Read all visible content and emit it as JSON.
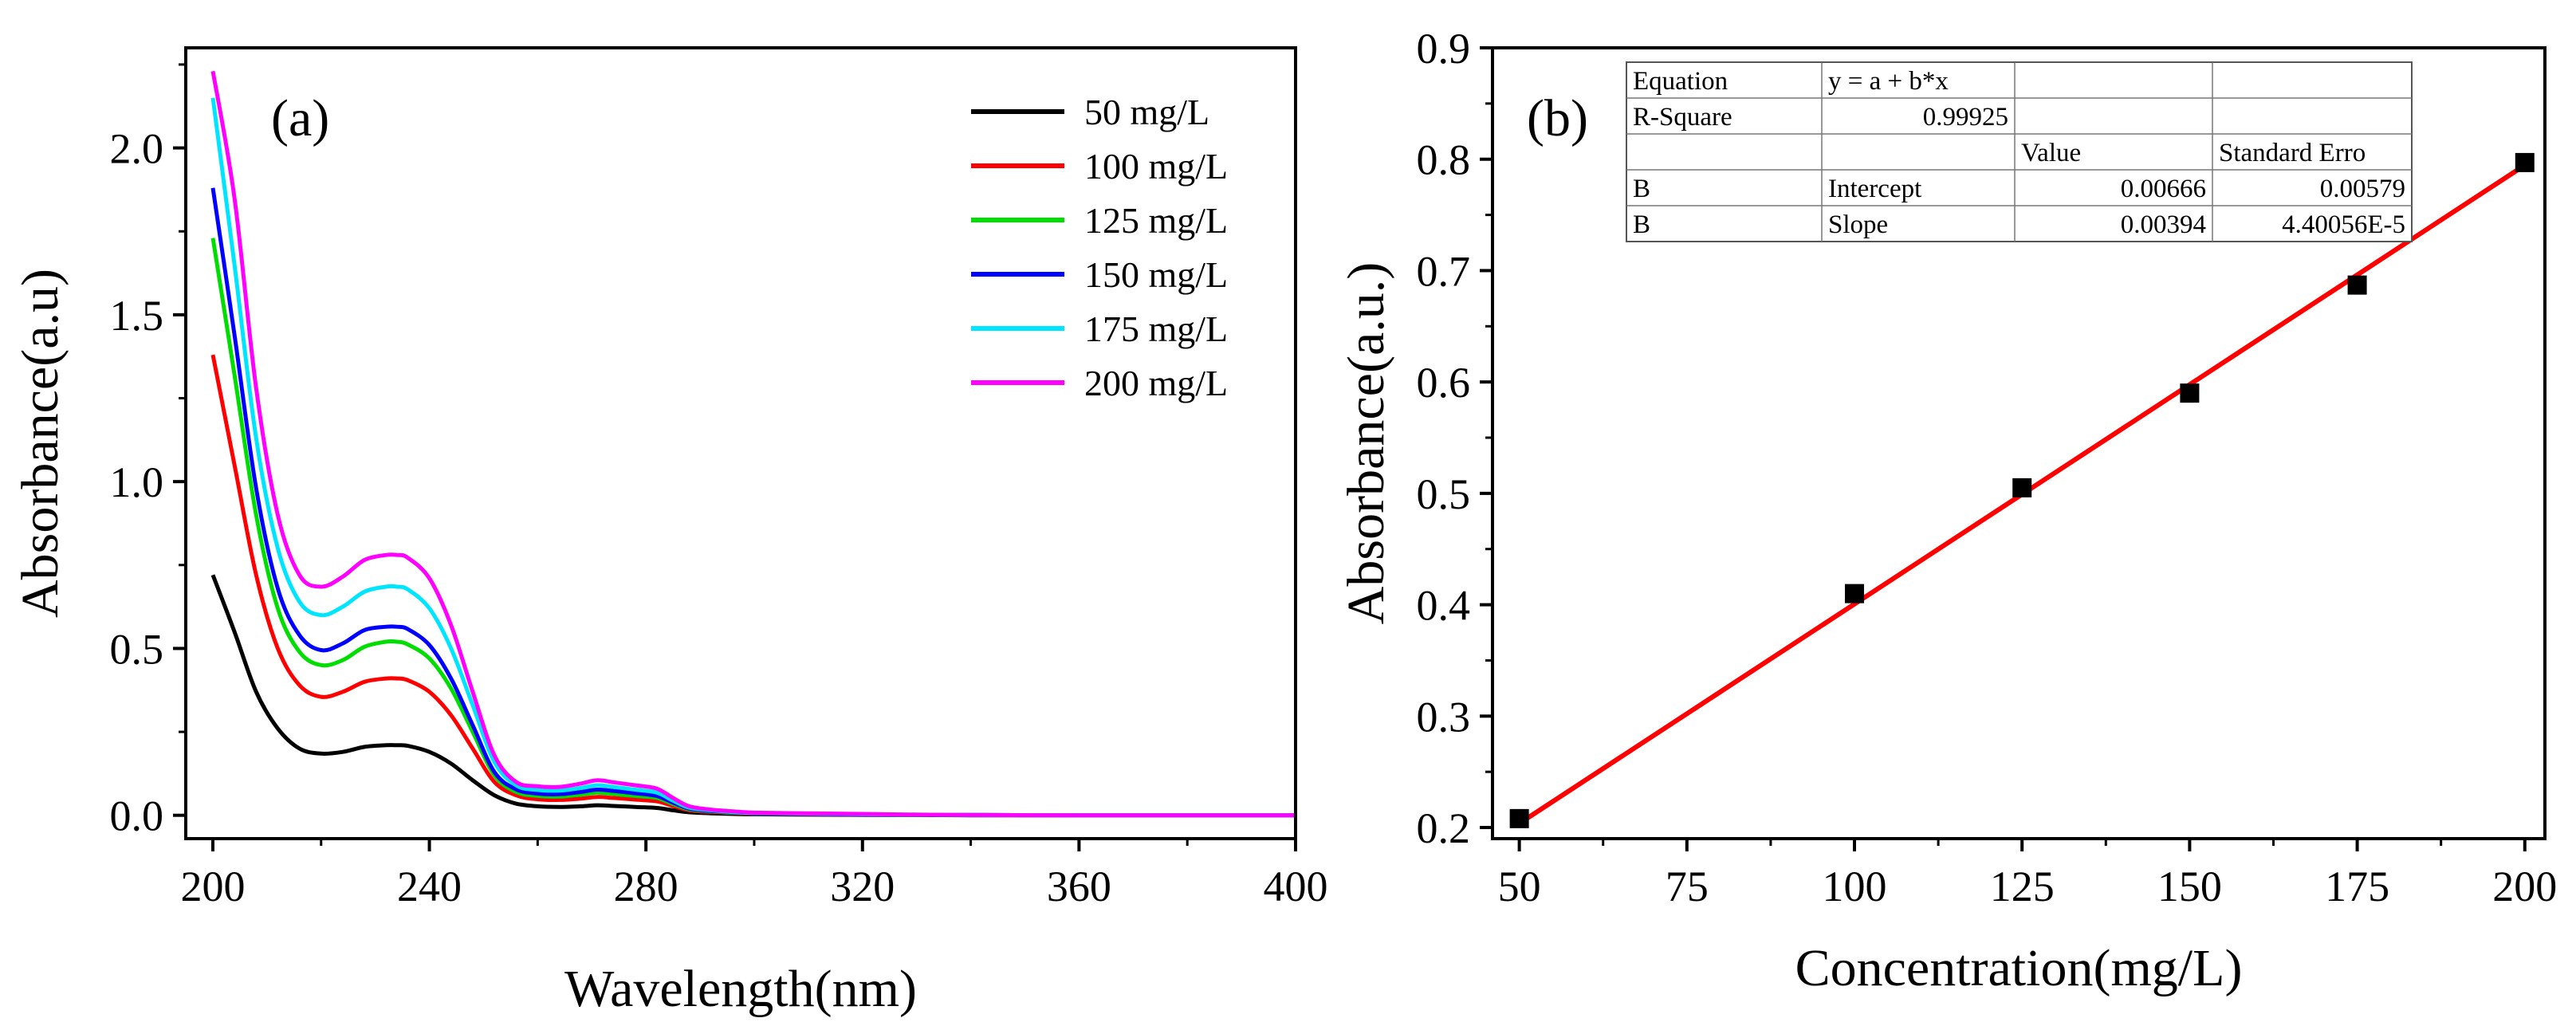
{
  "chart_data": [
    {
      "type": "line",
      "panel_label": "(a)",
      "title": "",
      "xlabel": "Wavelength(nm)",
      "ylabel": "Absorbance(a.u)",
      "xlim": [
        195,
        400
      ],
      "ylim": [
        -0.07,
        2.3
      ],
      "xticks": [
        200,
        240,
        280,
        320,
        360,
        400
      ],
      "yticks": [
        0.0,
        0.5,
        1.0,
        1.5,
        2.0
      ],
      "xtick_labels": [
        "200",
        "240",
        "280",
        "320",
        "360",
        "400"
      ],
      "ytick_labels": [
        "0.0",
        "0.5",
        "1.0",
        "1.5",
        "2.0"
      ],
      "grid": false,
      "legend_position": "top-right",
      "x": [
        200,
        204,
        208,
        212,
        216,
        220,
        224,
        228,
        232,
        234,
        236,
        240,
        244,
        248,
        252,
        256,
        260,
        264,
        268,
        271,
        274,
        278,
        282,
        285,
        288,
        292,
        296,
        300,
        310,
        320,
        330,
        340,
        360,
        380,
        400
      ],
      "series": [
        {
          "name": "50 mg/L",
          "color": "#000000",
          "values": [
            0.72,
            0.55,
            0.37,
            0.26,
            0.2,
            0.185,
            0.19,
            0.205,
            0.21,
            0.21,
            0.208,
            0.19,
            0.155,
            0.105,
            0.06,
            0.035,
            0.027,
            0.025,
            0.027,
            0.03,
            0.028,
            0.025,
            0.022,
            0.015,
            0.009,
            0.006,
            0.004,
            0.003,
            0.002,
            0.001,
            0.001,
            0.0,
            0.0,
            0.0,
            0.0
          ]
        },
        {
          "name": "100 mg/L",
          "color": "#ff0000",
          "values": [
            1.38,
            1.05,
            0.72,
            0.5,
            0.39,
            0.355,
            0.37,
            0.4,
            0.41,
            0.41,
            0.405,
            0.37,
            0.3,
            0.2,
            0.1,
            0.06,
            0.048,
            0.046,
            0.05,
            0.055,
            0.052,
            0.047,
            0.042,
            0.028,
            0.015,
            0.01,
            0.007,
            0.005,
            0.003,
            0.002,
            0.001,
            0.001,
            0.0,
            0.0,
            0.0
          ]
        },
        {
          "name": "125 mg/L",
          "color": "#00dd00",
          "values": [
            1.73,
            1.32,
            0.9,
            0.62,
            0.49,
            0.45,
            0.465,
            0.505,
            0.52,
            0.52,
            0.512,
            0.47,
            0.38,
            0.25,
            0.12,
            0.07,
            0.058,
            0.056,
            0.062,
            0.068,
            0.064,
            0.058,
            0.052,
            0.034,
            0.018,
            0.012,
            0.008,
            0.006,
            0.004,
            0.002,
            0.001,
            0.001,
            0.0,
            0.0,
            0.0
          ]
        },
        {
          "name": "150 mg/L",
          "color": "#0000ff",
          "values": [
            1.88,
            1.44,
            0.98,
            0.68,
            0.54,
            0.495,
            0.515,
            0.555,
            0.565,
            0.565,
            0.558,
            0.51,
            0.41,
            0.27,
            0.13,
            0.078,
            0.065,
            0.063,
            0.07,
            0.077,
            0.073,
            0.066,
            0.058,
            0.038,
            0.02,
            0.013,
            0.009,
            0.006,
            0.004,
            0.002,
            0.001,
            0.001,
            0.0,
            0.0,
            0.0
          ]
        },
        {
          "name": "175 mg/L",
          "color": "#00e5ff",
          "values": [
            2.15,
            1.65,
            1.13,
            0.8,
            0.64,
            0.6,
            0.625,
            0.67,
            0.685,
            0.685,
            0.677,
            0.62,
            0.5,
            0.33,
            0.16,
            0.09,
            0.076,
            0.074,
            0.082,
            0.09,
            0.085,
            0.077,
            0.068,
            0.044,
            0.023,
            0.015,
            0.01,
            0.007,
            0.005,
            0.003,
            0.002,
            0.001,
            0.0,
            0.0,
            0.0
          ]
        },
        {
          "name": "200 mg/L",
          "color": "#ff00ff",
          "values": [
            2.23,
            1.85,
            1.28,
            0.9,
            0.72,
            0.685,
            0.715,
            0.765,
            0.78,
            0.78,
            0.772,
            0.71,
            0.57,
            0.37,
            0.18,
            0.1,
            0.087,
            0.085,
            0.095,
            0.105,
            0.099,
            0.09,
            0.08,
            0.052,
            0.027,
            0.017,
            0.012,
            0.008,
            0.006,
            0.004,
            0.002,
            0.001,
            0.0,
            0.0,
            0.0
          ]
        }
      ]
    },
    {
      "type": "scatter",
      "panel_label": "(b)",
      "title": "",
      "xlabel": "Concentration(mg/L)",
      "ylabel": "Absorbance(a.u.)",
      "xlim": [
        46,
        203
      ],
      "ylim": [
        0.19,
        0.9
      ],
      "xticks": [
        50,
        75,
        100,
        125,
        150,
        175,
        200
      ],
      "yticks": [
        0.2,
        0.3,
        0.4,
        0.5,
        0.6,
        0.7,
        0.8,
        0.9
      ],
      "xtick_labels": [
        "50",
        "75",
        "100",
        "125",
        "150",
        "175",
        "200"
      ],
      "ytick_labels": [
        "0.2",
        "0.3",
        "0.4",
        "0.5",
        "0.6",
        "0.7",
        "0.8",
        "0.9"
      ],
      "grid": false,
      "x": [
        50,
        100,
        125,
        150,
        175,
        200
      ],
      "y": [
        0.208,
        0.41,
        0.505,
        0.59,
        0.687,
        0.797
      ],
      "marker_color": "#000000",
      "fit": {
        "color": "#ff0000",
        "x_range": [
          50,
          200
        ],
        "intercept": 0.00666,
        "slope": 0.00394
      },
      "fit_table": {
        "rows": [
          [
            "Equation",
            "y = a + b*x",
            "",
            ""
          ],
          [
            " R-Square",
            "0.99925",
            "",
            ""
          ],
          [
            "",
            "",
            "Value",
            "Standard Erro"
          ],
          [
            "B",
            "Intercept",
            "0.00666",
            "0.00579"
          ],
          [
            "B",
            "Slope",
            "0.00394",
            "4.40056E-5"
          ]
        ]
      }
    }
  ]
}
